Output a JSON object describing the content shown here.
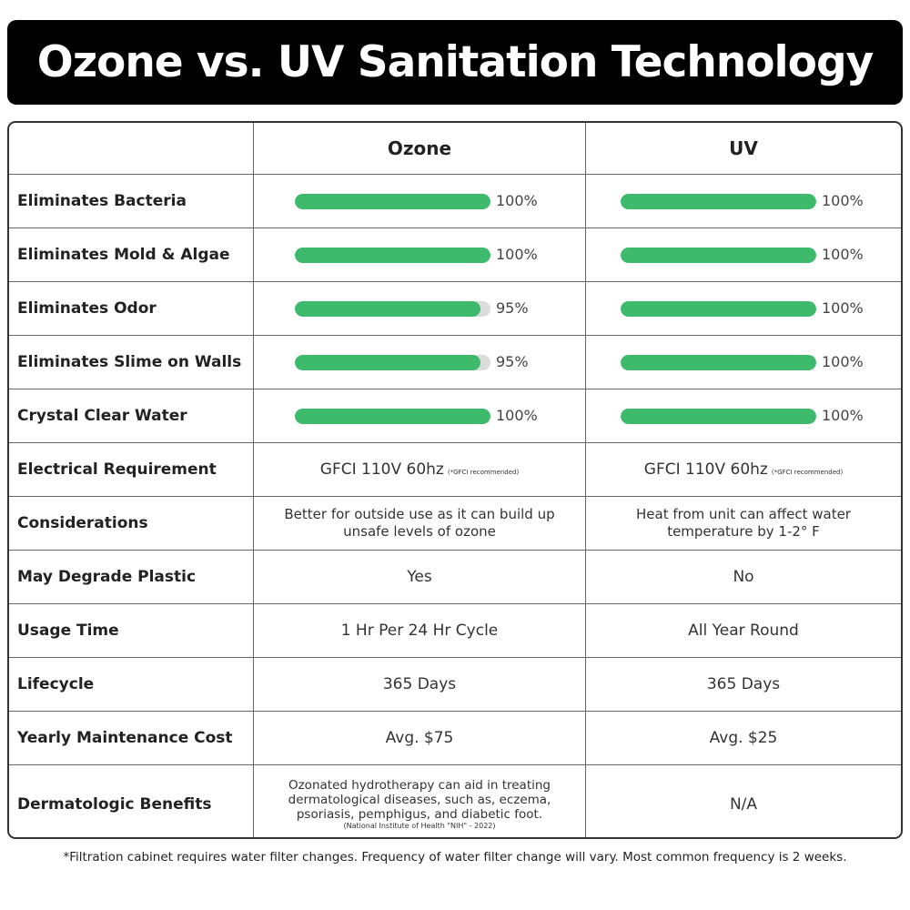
{
  "header": {
    "title": "Ozone vs. UV Sanitation Technology"
  },
  "table": {
    "columns": [
      "Ozone",
      "UV"
    ],
    "xlim": [
      0,
      100
    ],
    "rows": [
      {
        "label": "Eliminates Bacteria",
        "values": [
          100,
          100
        ],
        "value_labels": [
          "100%",
          "100%"
        ]
      },
      {
        "label": "Eliminates Mold & Algae",
        "values": [
          100,
          100
        ],
        "value_labels": [
          "100%",
          "100%"
        ]
      },
      {
        "label": "Eliminates Odor",
        "values": [
          95,
          100
        ],
        "value_labels": [
          "95%",
          "100%"
        ]
      },
      {
        "label": "Eliminates Slime on Walls",
        "values": [
          95,
          100
        ],
        "value_labels": [
          "95%",
          "100%"
        ]
      },
      {
        "label": "Crystal Clear Water",
        "values": [
          100,
          100
        ],
        "value_labels": [
          "100%",
          "100%"
        ]
      },
      {
        "label": "Electrical Requirement",
        "cells": [
          {
            "text": "GFCI 110V 60hz",
            "note": "(*GFCI recommended)"
          },
          {
            "text": "GFCI 110V 60hz",
            "note": "(*GFCI recommended)"
          }
        ]
      },
      {
        "label": "Considerations",
        "cells": [
          {
            "text": "Better for outside use as it can build up unsafe levels of ozone"
          },
          {
            "text": "Heat from unit can affect water temperature by 1-2° F"
          }
        ]
      },
      {
        "label": "May Degrade Plastic",
        "cells": [
          {
            "text": "Yes"
          },
          {
            "text": "No"
          }
        ]
      },
      {
        "label": "Usage Time",
        "cells": [
          {
            "text": "1 Hr Per 24 Hr Cycle"
          },
          {
            "text": "All Year Round"
          }
        ]
      },
      {
        "label": "Lifecycle",
        "cells": [
          {
            "text": "365 Days"
          },
          {
            "text": "365 Days"
          }
        ]
      },
      {
        "label": "Yearly Maintenance Cost",
        "cells": [
          {
            "text": "Avg. $75"
          },
          {
            "text": "Avg. $25"
          }
        ]
      },
      {
        "label": "Dermatologic Benefits",
        "cells": [
          {
            "text": "Ozonated hydrotherapy can aid in treating dermatological diseases, such as, eczema, psoriasis, pemphigus, and diabetic foot.",
            "source": "(National Institute of Health \"NIH\" - 2022)"
          },
          {
            "text": "N/A"
          }
        ]
      }
    ]
  },
  "footnote": "*Filtration cabinet requires water filter changes. Frequency of water filter change will vary. Most common frequency is 2 weeks."
}
